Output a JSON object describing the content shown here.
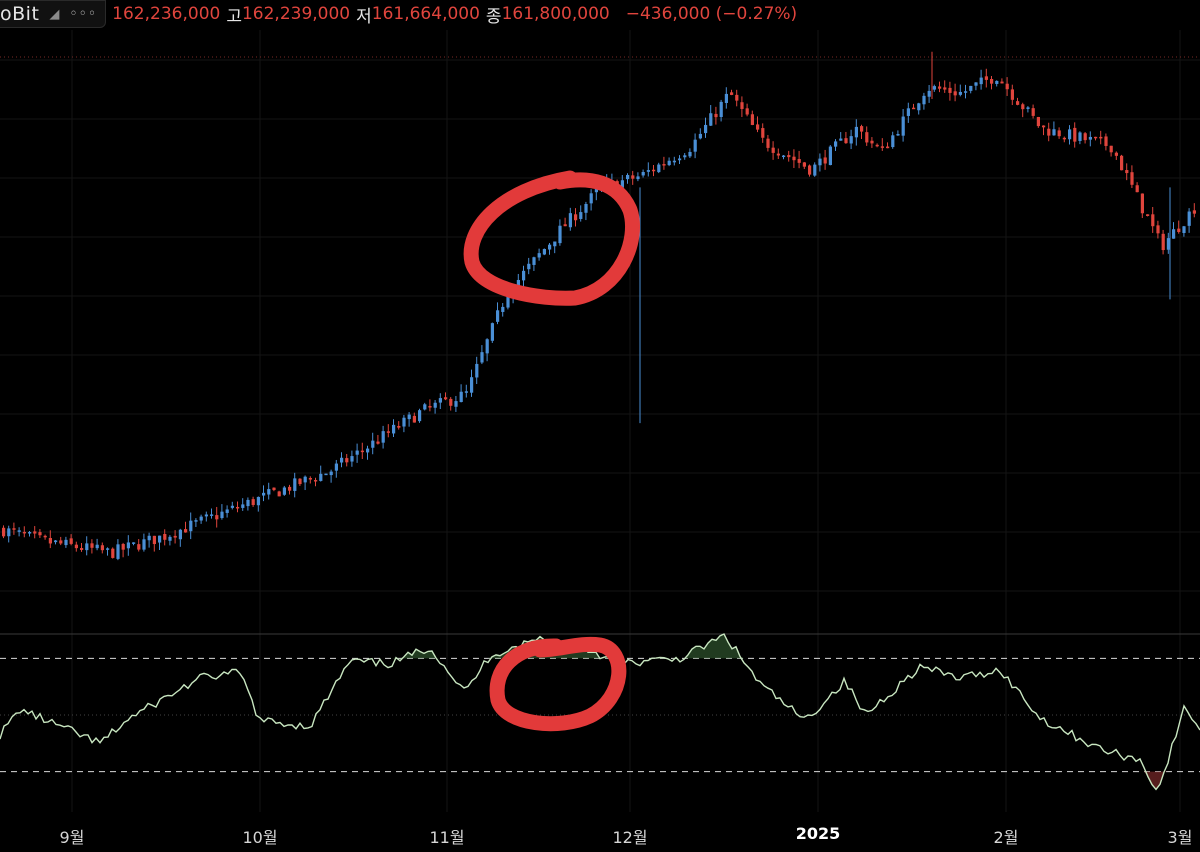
{
  "header": {
    "brand": "oBit",
    "collapse_icon": "collapse-icon",
    "more_icon": "more-icon",
    "open_value": "162,236,000",
    "high_label": "고",
    "high_value": "162,239,000",
    "low_label": "저",
    "low_value": "161,664,000",
    "close_label": "종",
    "close_value": "161,800,000",
    "change": "−436,000 (−0.27%)"
  },
  "colors": {
    "background": "#000000",
    "up_candle": "#4a8fd6",
    "down_candle": "#e0453d",
    "rsi_line": "#c8e6c0",
    "annotation": "#e23a3a"
  },
  "chart_data": [
    {
      "type": "candlestick",
      "title": "",
      "x_tick_labels": [
        "9월",
        "10월",
        "11월",
        "12월",
        "2025",
        "2월",
        "3월"
      ],
      "price_reference": 161800000,
      "close_trend": [
        {
          "x": 0,
          "y": 92
        },
        {
          "x": 40,
          "y": 90
        },
        {
          "x": 110,
          "y": 88
        },
        {
          "x": 165,
          "y": 91
        },
        {
          "x": 240,
          "y": 96
        },
        {
          "x": 330,
          "y": 102
        },
        {
          "x": 420,
          "y": 112
        },
        {
          "x": 465,
          "y": 115
        },
        {
          "x": 505,
          "y": 132
        },
        {
          "x": 560,
          "y": 143
        },
        {
          "x": 600,
          "y": 150
        },
        {
          "x": 640,
          "y": 152
        },
        {
          "x": 690,
          "y": 157
        },
        {
          "x": 728,
          "y": 166
        },
        {
          "x": 760,
          "y": 158
        },
        {
          "x": 810,
          "y": 153
        },
        {
          "x": 855,
          "y": 160
        },
        {
          "x": 880,
          "y": 156
        },
        {
          "x": 925,
          "y": 167
        },
        {
          "x": 960,
          "y": 166
        },
        {
          "x": 995,
          "y": 169
        },
        {
          "x": 1040,
          "y": 160
        },
        {
          "x": 1110,
          "y": 157
        },
        {
          "x": 1160,
          "y": 140
        },
        {
          "x": 1200,
          "y": 148
        }
      ],
      "annotations": [
        "red circle around late-November candles"
      ]
    },
    {
      "type": "line",
      "title": "",
      "levels": [
        30,
        50,
        70
      ],
      "ylim": [
        20,
        80
      ],
      "series": [
        {
          "values_by_x": [
            {
              "x": 0,
              "y": 43
            },
            {
              "x": 20,
              "y": 52
            },
            {
              "x": 100,
              "y": 40
            },
            {
              "x": 130,
              "y": 49
            },
            {
              "x": 200,
              "y": 63
            },
            {
              "x": 240,
              "y": 65
            },
            {
              "x": 260,
              "y": 48
            },
            {
              "x": 310,
              "y": 46
            },
            {
              "x": 350,
              "y": 69
            },
            {
              "x": 390,
              "y": 68
            },
            {
              "x": 430,
              "y": 74
            },
            {
              "x": 465,
              "y": 58
            },
            {
              "x": 490,
              "y": 71
            },
            {
              "x": 540,
              "y": 77
            },
            {
              "x": 590,
              "y": 73
            },
            {
              "x": 620,
              "y": 68
            },
            {
              "x": 680,
              "y": 70
            },
            {
              "x": 725,
              "y": 78
            },
            {
              "x": 760,
              "y": 61
            },
            {
              "x": 805,
              "y": 48
            },
            {
              "x": 845,
              "y": 62
            },
            {
              "x": 865,
              "y": 50
            },
            {
              "x": 920,
              "y": 67
            },
            {
              "x": 960,
              "y": 63
            },
            {
              "x": 1000,
              "y": 66
            },
            {
              "x": 1040,
              "y": 49
            },
            {
              "x": 1100,
              "y": 38
            },
            {
              "x": 1140,
              "y": 34
            },
            {
              "x": 1158,
              "y": 23
            },
            {
              "x": 1185,
              "y": 53
            },
            {
              "x": 1200,
              "y": 45
            }
          ]
        }
      ],
      "annotations": [
        "red circle around overbought peak"
      ]
    }
  ]
}
